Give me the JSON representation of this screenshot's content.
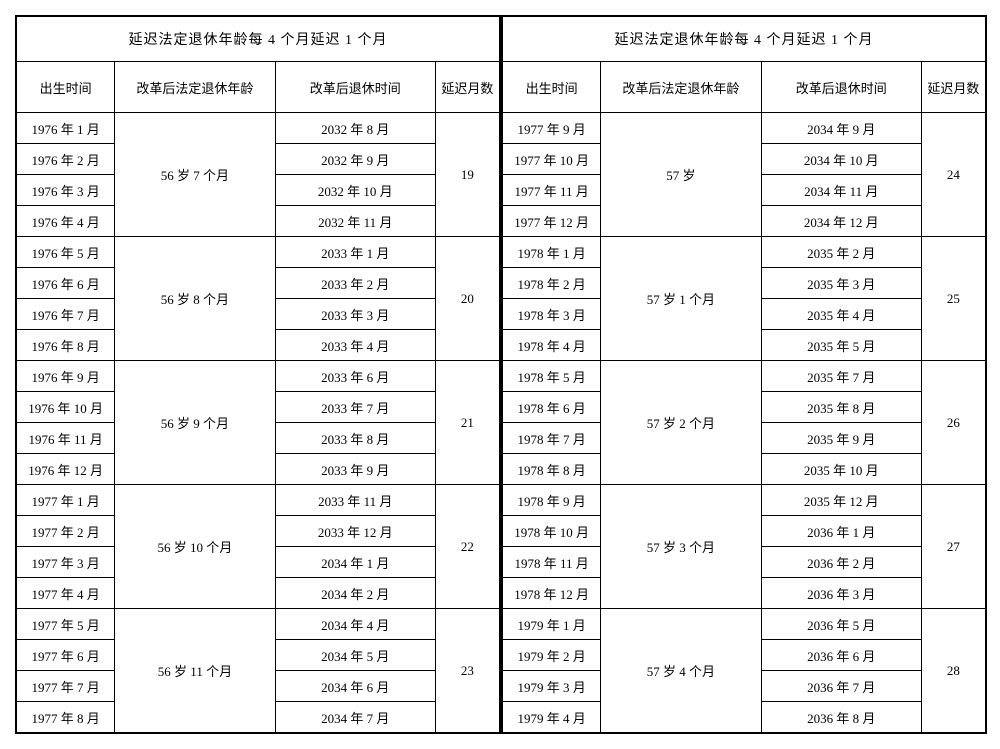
{
  "panel_title": "延迟法定退休年龄每 4 个月延迟 1 个月",
  "headers": {
    "birth": "出生时间",
    "age": "改革后法定退休年龄",
    "ret": "改革后退休时间",
    "delay": "延迟月数"
  },
  "left": [
    {
      "age": "56 岁 7 个月",
      "delay": "19",
      "rows": [
        {
          "b": "1976 年 1 月",
          "r": "2032 年 8 月"
        },
        {
          "b": "1976 年 2 月",
          "r": "2032 年 9 月"
        },
        {
          "b": "1976 年 3 月",
          "r": "2032 年 10 月"
        },
        {
          "b": "1976 年 4 月",
          "r": "2032 年 11 月"
        }
      ]
    },
    {
      "age": "56 岁 8 个月",
      "delay": "20",
      "rows": [
        {
          "b": "1976 年 5 月",
          "r": "2033 年 1 月"
        },
        {
          "b": "1976 年 6 月",
          "r": "2033 年 2 月"
        },
        {
          "b": "1976 年 7 月",
          "r": "2033 年 3 月"
        },
        {
          "b": "1976 年 8 月",
          "r": "2033 年 4 月"
        }
      ]
    },
    {
      "age": "56 岁 9 个月",
      "delay": "21",
      "rows": [
        {
          "b": "1976 年 9 月",
          "r": "2033 年 6 月"
        },
        {
          "b": "1976 年 10 月",
          "r": "2033 年 7 月"
        },
        {
          "b": "1976 年 11 月",
          "r": "2033 年 8 月"
        },
        {
          "b": "1976 年 12 月",
          "r": "2033 年 9 月"
        }
      ]
    },
    {
      "age": "56 岁 10 个月",
      "delay": "22",
      "rows": [
        {
          "b": "1977 年 1 月",
          "r": "2033 年 11 月"
        },
        {
          "b": "1977 年 2 月",
          "r": "2033 年 12 月"
        },
        {
          "b": "1977 年 3 月",
          "r": "2034 年 1 月"
        },
        {
          "b": "1977 年 4 月",
          "r": "2034 年 2 月"
        }
      ]
    },
    {
      "age": "56 岁 11 个月",
      "delay": "23",
      "rows": [
        {
          "b": "1977 年 5 月",
          "r": "2034 年 4 月"
        },
        {
          "b": "1977 年 6 月",
          "r": "2034 年 5 月"
        },
        {
          "b": "1977 年 7 月",
          "r": "2034 年 6 月"
        },
        {
          "b": "1977 年 8 月",
          "r": "2034 年 7 月"
        }
      ]
    }
  ],
  "right": [
    {
      "age": "57 岁",
      "delay": "24",
      "rows": [
        {
          "b": "1977 年 9 月",
          "r": "2034 年 9 月"
        },
        {
          "b": "1977 年 10 月",
          "r": "2034 年 10 月"
        },
        {
          "b": "1977 年 11 月",
          "r": "2034 年 11 月"
        },
        {
          "b": "1977 年 12 月",
          "r": "2034 年 12 月"
        }
      ]
    },
    {
      "age": "57 岁 1 个月",
      "delay": "25",
      "rows": [
        {
          "b": "1978 年 1 月",
          "r": "2035 年 2 月"
        },
        {
          "b": "1978 年 2 月",
          "r": "2035 年 3 月"
        },
        {
          "b": "1978 年 3 月",
          "r": "2035 年 4 月"
        },
        {
          "b": "1978 年 4 月",
          "r": "2035 年 5 月"
        }
      ]
    },
    {
      "age": "57 岁 2 个月",
      "delay": "26",
      "rows": [
        {
          "b": "1978 年 5 月",
          "r": "2035 年 7 月"
        },
        {
          "b": "1978 年 6 月",
          "r": "2035 年 8 月"
        },
        {
          "b": "1978 年 7 月",
          "r": "2035 年 9 月"
        },
        {
          "b": "1978 年 8 月",
          "r": "2035 年 10 月"
        }
      ]
    },
    {
      "age": "57 岁 3 个月",
      "delay": "27",
      "rows": [
        {
          "b": "1978 年 9 月",
          "r": "2035 年 12 月"
        },
        {
          "b": "1978 年 10 月",
          "r": "2036 年 1 月"
        },
        {
          "b": "1978 年 11 月",
          "r": "2036 年 2 月"
        },
        {
          "b": "1978 年 12 月",
          "r": "2036 年 3 月"
        }
      ]
    },
    {
      "age": "57 岁 4 个月",
      "delay": "28",
      "rows": [
        {
          "b": "1979 年 1 月",
          "r": "2036 年 5 月"
        },
        {
          "b": "1979 年 2 月",
          "r": "2036 年 6 月"
        },
        {
          "b": "1979 年 3 月",
          "r": "2036 年 7 月"
        },
        {
          "b": "1979 年 4 月",
          "r": "2036 年 8 月"
        }
      ]
    }
  ]
}
